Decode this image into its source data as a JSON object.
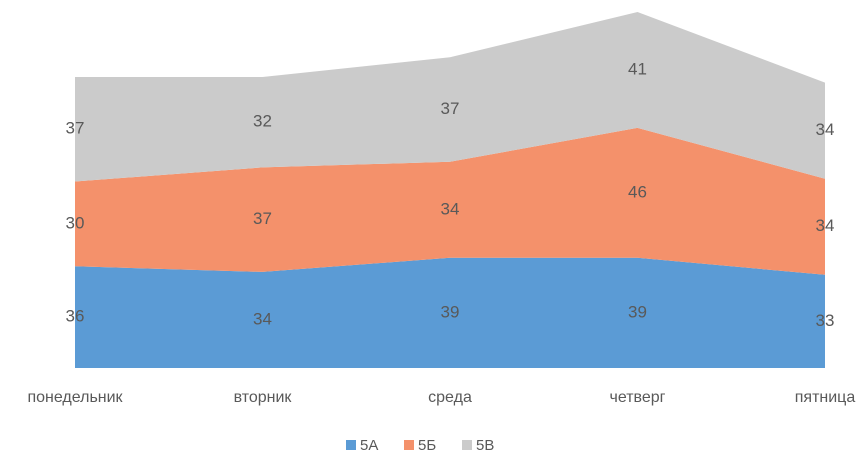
{
  "chart_data": {
    "type": "area",
    "stacked": true,
    "categories": [
      "понедельник",
      "вторник",
      "среда",
      "четверг",
      "пятница"
    ],
    "series": [
      {
        "name": "5А",
        "color": "#5b9bd5",
        "values": [
          36,
          34,
          39,
          39,
          33
        ]
      },
      {
        "name": "5Б",
        "color": "#f4916b",
        "values": [
          30,
          37,
          34,
          46,
          34
        ]
      },
      {
        "name": "5В",
        "color": "#cbcbcb",
        "values": [
          37,
          32,
          37,
          41,
          34
        ]
      }
    ],
    "legend": "bottom"
  }
}
